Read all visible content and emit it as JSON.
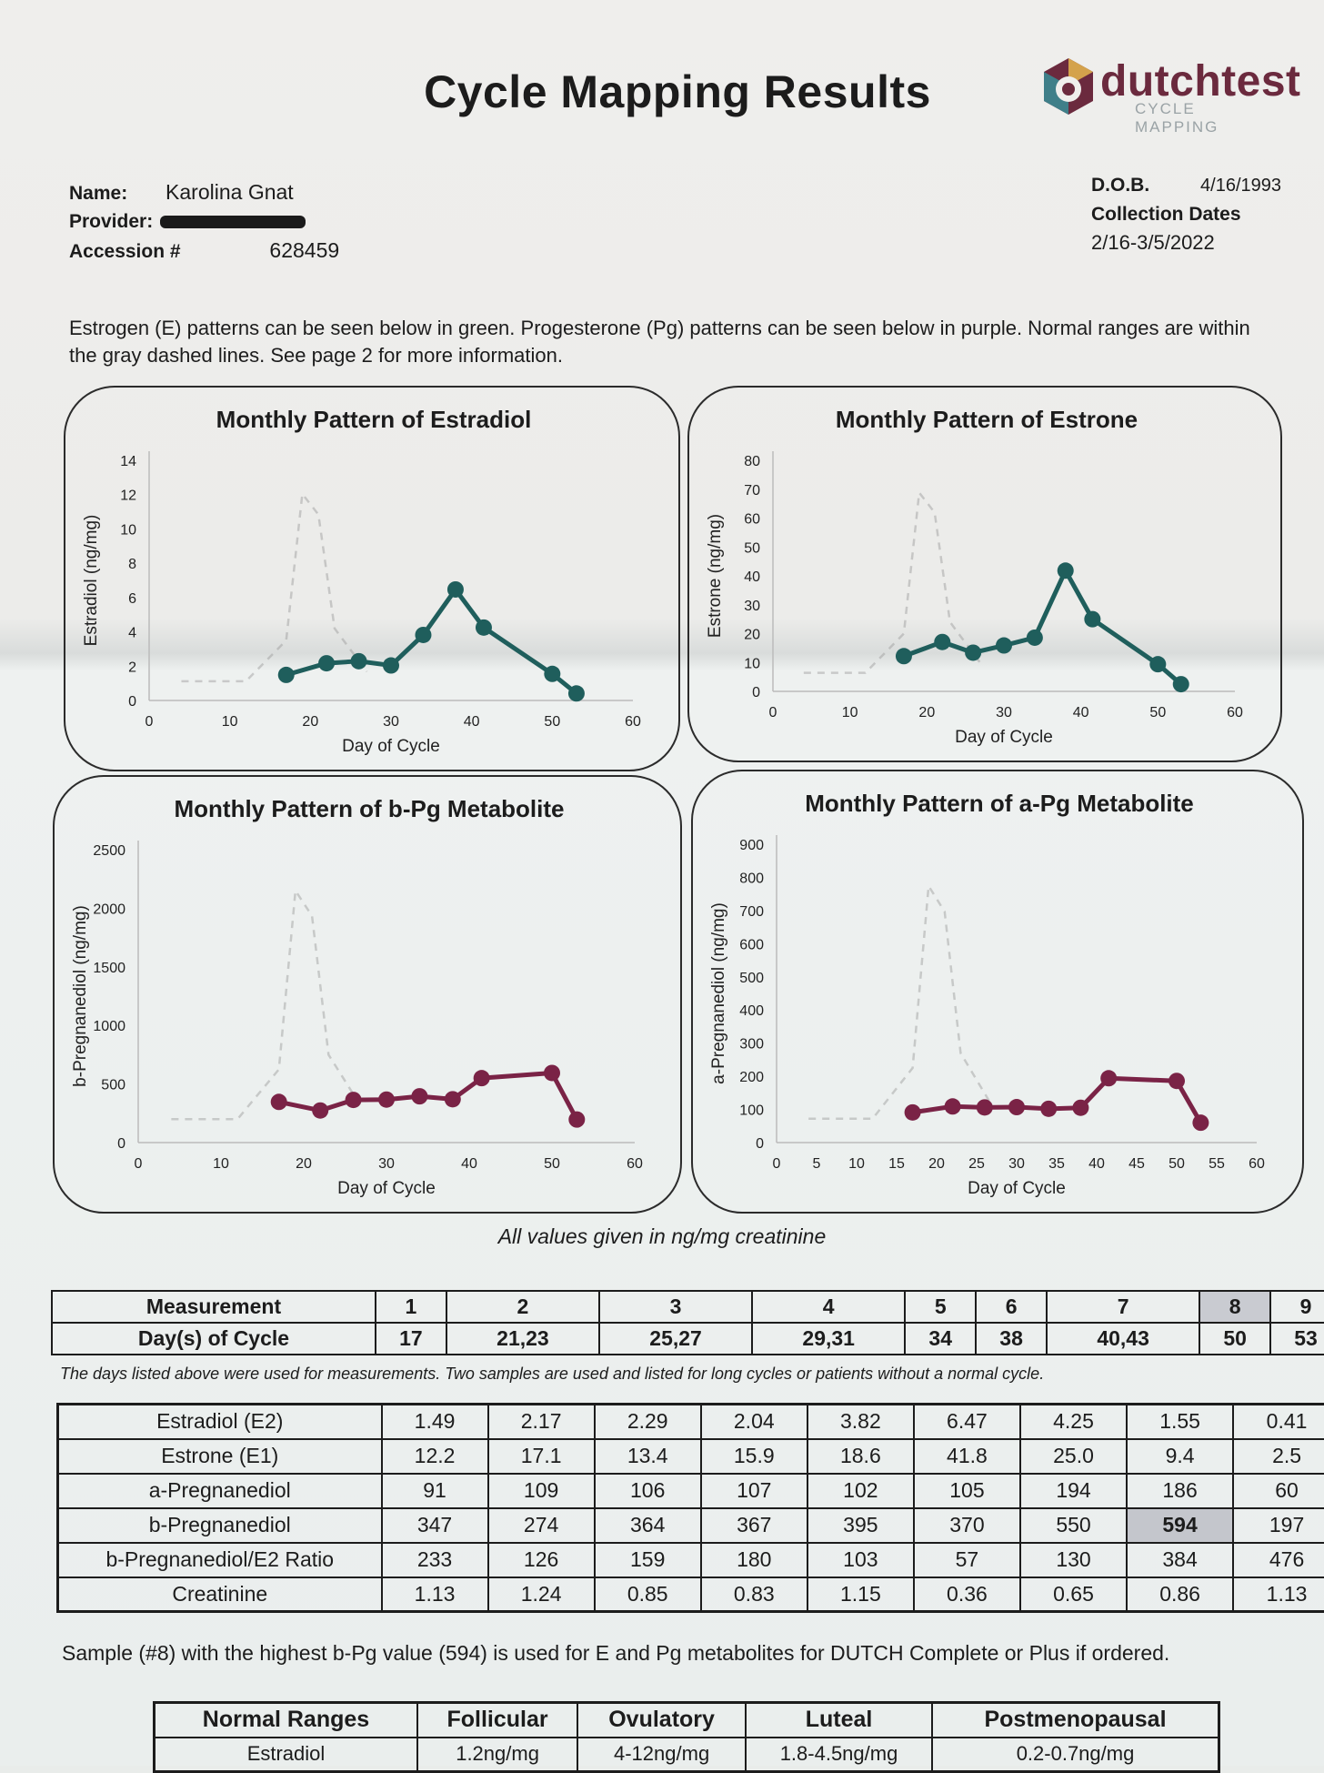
{
  "header": {
    "title": "Cycle Mapping Results",
    "logo_text": "dutchtest",
    "logo_sub": "CYCLE MAPPING"
  },
  "patient": {
    "name_label": "Name:",
    "name": "Karolina Gnat",
    "provider_label": "Provider:",
    "provider": "[redacted]",
    "accession_label": "Accession #",
    "accession": "628459",
    "dob_label": "D.O.B.",
    "dob": "4/16/1993",
    "collection_label": "Collection Dates",
    "collection": "2/16-3/5/2022"
  },
  "intro": "Estrogen (E) patterns can be seen below in green. Progesterone (Pg) patterns can be seen below in purple. Normal ranges are within the gray dashed lines. See page 2 for more information.",
  "colors": {
    "estrogen": "#1f5e5c",
    "progesterone": "#7a2346",
    "range": "#9a9a9a"
  },
  "chart_data": [
    {
      "type": "line",
      "title": "Monthly Pattern of Estradiol",
      "xlabel": "Day of Cycle",
      "ylabel": "Estradiol (ng/mg)",
      "xlim": [
        0,
        60
      ],
      "ylim": [
        0,
        14
      ],
      "xticks": [
        0,
        10,
        20,
        30,
        40,
        50,
        60
      ],
      "yticks": [
        0,
        2,
        4,
        6,
        8,
        10,
        12,
        14
      ],
      "color": "#1f5e5c",
      "x": [
        17,
        22,
        26,
        30,
        34,
        38,
        41.5,
        50,
        53
      ],
      "y": [
        1.49,
        2.17,
        2.29,
        2.04,
        3.82,
        6.47,
        4.25,
        1.55,
        0.41
      ]
    },
    {
      "type": "line",
      "title": "Monthly Pattern of Estrone",
      "xlabel": "Day of Cycle",
      "ylabel": "Estrone (ng/mg)",
      "xlim": [
        0,
        60
      ],
      "ylim": [
        0,
        80
      ],
      "xticks": [
        0,
        10,
        20,
        30,
        40,
        50,
        60
      ],
      "yticks": [
        0,
        10,
        20,
        30,
        40,
        50,
        60,
        70,
        80
      ],
      "color": "#1f5e5c",
      "x": [
        17,
        22,
        26,
        30,
        34,
        38,
        41.5,
        50,
        53
      ],
      "y": [
        12.2,
        17.1,
        13.4,
        15.9,
        18.6,
        41.8,
        25.0,
        9.4,
        2.5
      ]
    },
    {
      "type": "line",
      "title": "Monthly Pattern of b-Pg Metabolite",
      "xlabel": "Day of Cycle",
      "ylabel": "b-Pregnanediol (ng/mg)",
      "xlim": [
        0,
        60
      ],
      "ylim": [
        0,
        2500
      ],
      "xticks": [
        0,
        10,
        20,
        30,
        40,
        50,
        60
      ],
      "yticks": [
        0,
        500,
        1000,
        1500,
        2000,
        2500
      ],
      "color": "#7a2346",
      "x": [
        17,
        22,
        26,
        30,
        34,
        38,
        41.5,
        50,
        53
      ],
      "y": [
        347,
        274,
        364,
        367,
        395,
        370,
        550,
        594,
        197
      ]
    },
    {
      "type": "line",
      "title": "Monthly Pattern of a-Pg Metabolite",
      "xlabel": "Day of Cycle",
      "ylabel": "a-Pregnanediol (ng/mg)",
      "xlim": [
        0,
        60
      ],
      "ylim": [
        0,
        900
      ],
      "xticks": [
        0,
        5,
        10,
        15,
        20,
        25,
        30,
        35,
        40,
        45,
        50,
        55,
        60
      ],
      "yticks": [
        0,
        100,
        200,
        300,
        400,
        500,
        600,
        700,
        800,
        900
      ],
      "color": "#7a2346",
      "x": [
        17,
        22,
        26,
        30,
        34,
        38,
        41.5,
        50,
        53
      ],
      "y": [
        91,
        109,
        106,
        107,
        102,
        105,
        194,
        186,
        60
      ]
    }
  ],
  "units_note": "All values given in ng/mg creatinine",
  "measurements": {
    "row1_label": "Measurement",
    "row2_label": "Day(s) of Cycle",
    "numbers": [
      "1",
      "2",
      "3",
      "4",
      "5",
      "6",
      "7",
      "8",
      "9"
    ],
    "days": [
      "17",
      "21,23",
      "25,27",
      "29,31",
      "34",
      "38",
      "40,43",
      "50",
      "53"
    ]
  },
  "days_note": "The days listed above were used for measurements. Two samples are used and listed for long cycles or patients without a normal cycle.",
  "results": [
    {
      "label": "Estradiol (E2)",
      "values": [
        "1.49",
        "2.17",
        "2.29",
        "2.04",
        "3.82",
        "6.47",
        "4.25",
        "1.55",
        "0.41"
      ]
    },
    {
      "label": "Estrone (E1)",
      "values": [
        "12.2",
        "17.1",
        "13.4",
        "15.9",
        "18.6",
        "41.8",
        "25.0",
        "9.4",
        "2.5"
      ]
    },
    {
      "label": "a-Pregnanediol",
      "values": [
        "91",
        "109",
        "106",
        "107",
        "102",
        "105",
        "194",
        "186",
        "60"
      ]
    },
    {
      "label": "b-Pregnanediol",
      "values": [
        "347",
        "274",
        "364",
        "367",
        "395",
        "370",
        "550",
        "594",
        "197"
      ]
    },
    {
      "label": "b-Pregnanediol/E2 Ratio",
      "values": [
        "233",
        "126",
        "159",
        "180",
        "103",
        "57",
        "130",
        "384",
        "476"
      ]
    },
    {
      "label": "Creatinine",
      "values": [
        "1.13",
        "1.24",
        "0.85",
        "0.83",
        "1.15",
        "0.36",
        "0.65",
        "0.86",
        "1.13"
      ]
    }
  ],
  "summary": "Sample (#8) with the highest b-Pg value (594) is used for E and Pg metabolites for DUTCH Complete or Plus if ordered.",
  "normal_ranges": {
    "headers": [
      "Normal Ranges",
      "Follicular",
      "Ovulatory",
      "Luteal",
      "Postmenopausal"
    ],
    "row": [
      "Estradiol",
      "1.2ng/mg",
      "4-12ng/mg",
      "1.8-4.5ng/mg",
      "0.2-0.7ng/mg"
    ]
  }
}
